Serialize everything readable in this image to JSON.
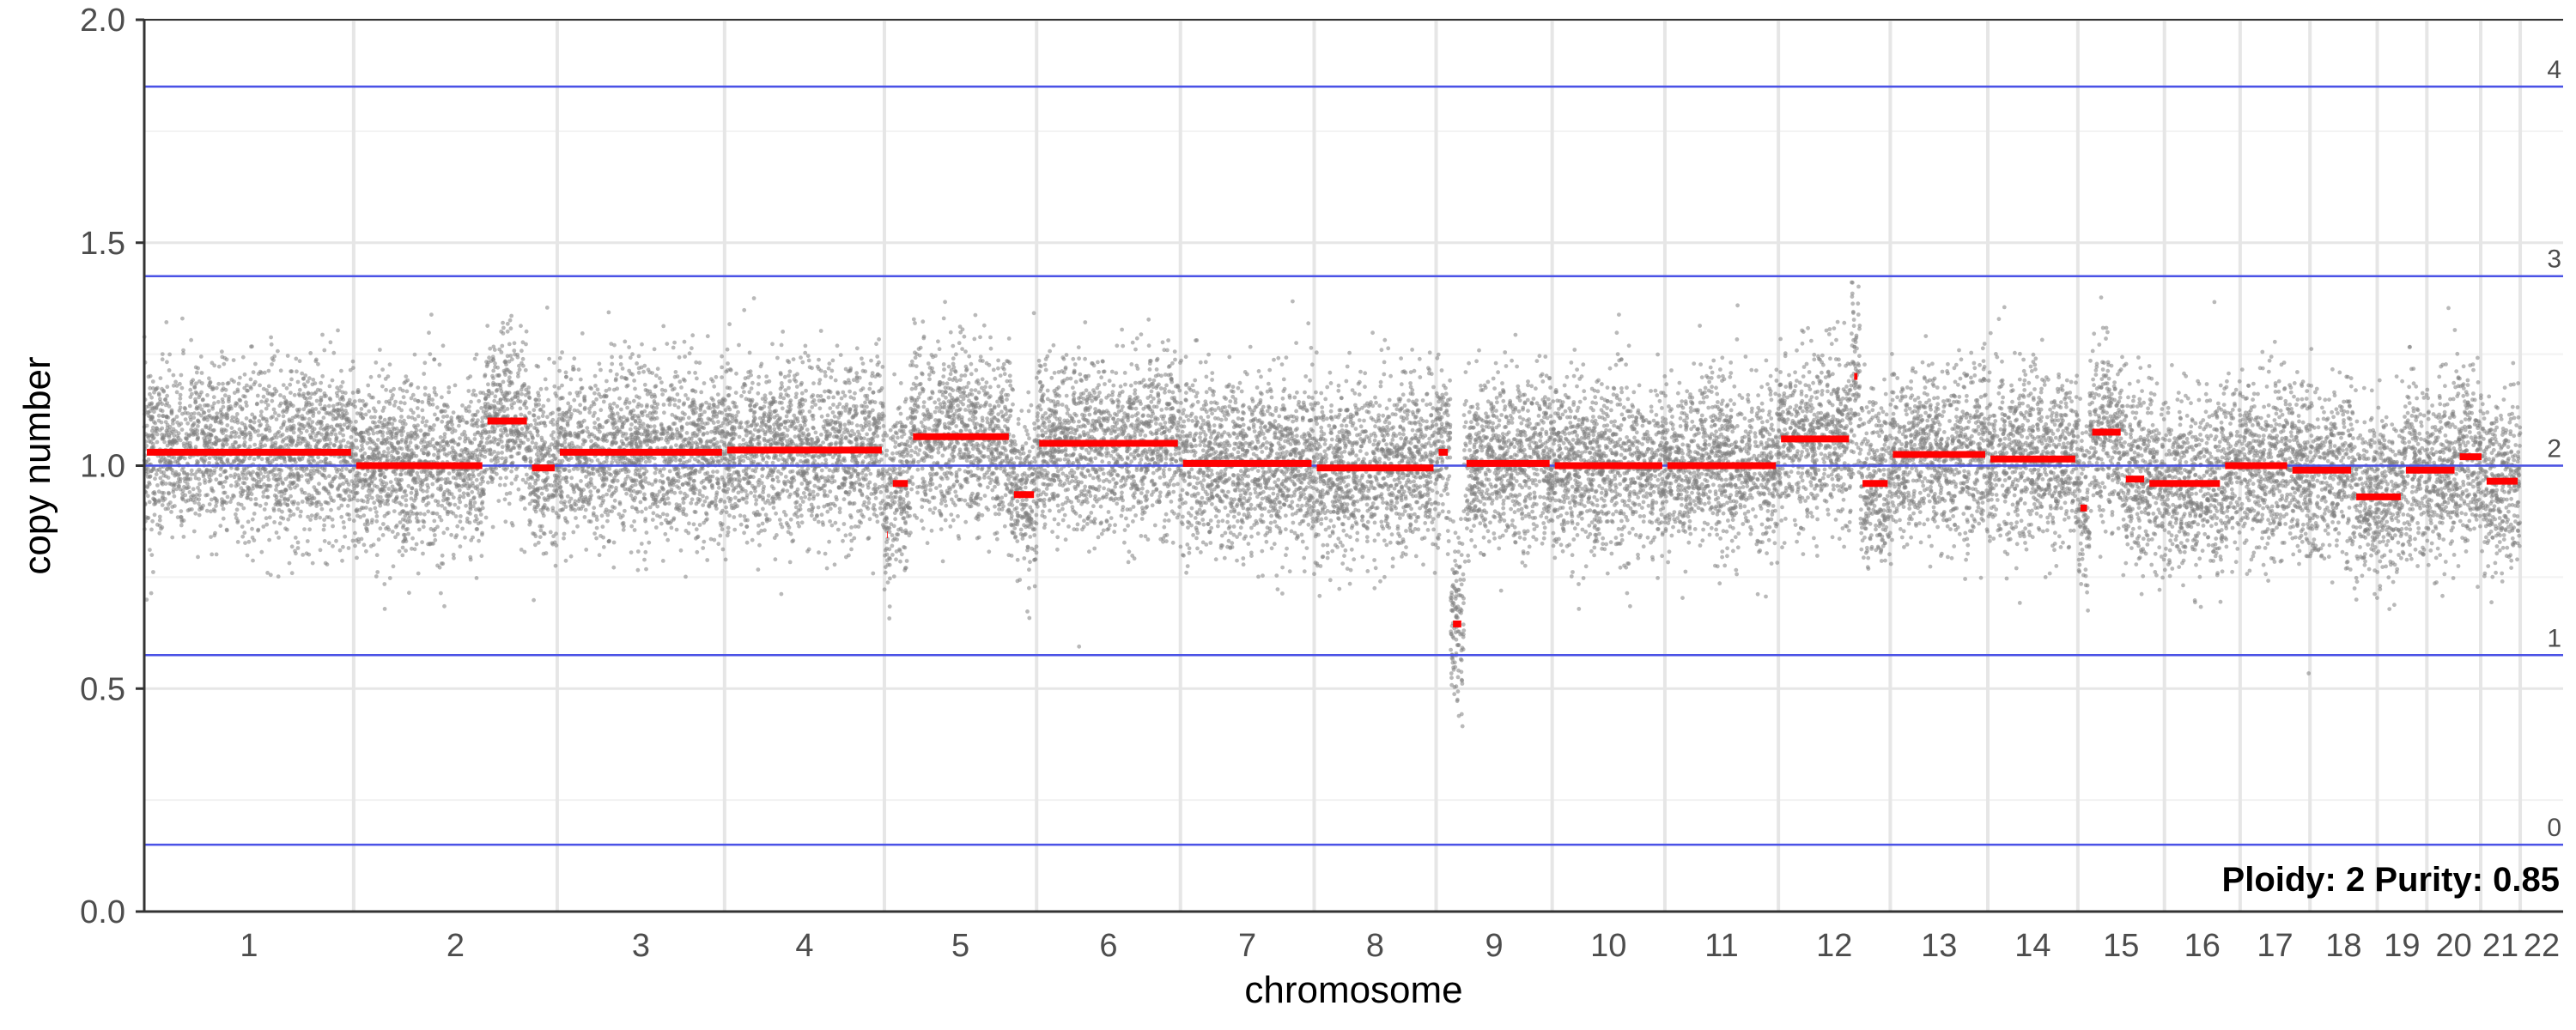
{
  "chart_data": {
    "type": "scatter",
    "title": "",
    "xlabel": "chromosome",
    "ylabel": "copy number",
    "ylim": [
      0,
      2
    ],
    "y_ticks": [
      "0.0",
      "0.5",
      "1.0",
      "1.5",
      "2.0"
    ],
    "grid": true,
    "chromosomes": [
      {
        "label": "1",
        "start": 0,
        "end": 249
      },
      {
        "label": "2",
        "start": 249,
        "end": 491
      },
      {
        "label": "3",
        "start": 491,
        "end": 690
      },
      {
        "label": "4",
        "start": 690,
        "end": 880
      },
      {
        "label": "5",
        "start": 880,
        "end": 1061
      },
      {
        "label": "6",
        "start": 1061,
        "end": 1232
      },
      {
        "label": "7",
        "start": 1232,
        "end": 1391
      },
      {
        "label": "8",
        "start": 1391,
        "end": 1536
      },
      {
        "label": "9",
        "start": 1536,
        "end": 1674
      },
      {
        "label": "10",
        "start": 1674,
        "end": 1808
      },
      {
        "label": "11",
        "start": 1808,
        "end": 1943
      },
      {
        "label": "12",
        "start": 1943,
        "end": 2076
      },
      {
        "label": "13",
        "start": 2076,
        "end": 2192
      },
      {
        "label": "14",
        "start": 2192,
        "end": 2299
      },
      {
        "label": "15",
        "start": 2299,
        "end": 2402
      },
      {
        "label": "16",
        "start": 2402,
        "end": 2492
      },
      {
        "label": "17",
        "start": 2492,
        "end": 2575
      },
      {
        "label": "18",
        "start": 2575,
        "end": 2655
      },
      {
        "label": "19",
        "start": 2655,
        "end": 2714
      },
      {
        "label": "20",
        "start": 2714,
        "end": 2778
      },
      {
        "label": "21",
        "start": 2778,
        "end": 2825
      },
      {
        "label": "22",
        "start": 2825,
        "end": 2876
      }
    ],
    "copy_number_levels": [
      {
        "label": "0",
        "value": 0.15
      },
      {
        "label": "1",
        "value": 0.575
      },
      {
        "label": "2",
        "value": 1.0
      },
      {
        "label": "3",
        "value": 1.425
      },
      {
        "label": "4",
        "value": 1.85
      }
    ],
    "segments": [
      {
        "start": 0,
        "end": 249,
        "value": 1.03
      },
      {
        "start": 249,
        "end": 405,
        "value": 1.0
      },
      {
        "start": 405,
        "end": 458,
        "value": 1.1
      },
      {
        "start": 458,
        "end": 491,
        "value": 0.995
      },
      {
        "start": 491,
        "end": 690,
        "value": 1.03
      },
      {
        "start": 690,
        "end": 880,
        "value": 1.035
      },
      {
        "start": 880,
        "end": 887,
        "value": 0.845
      },
      {
        "start": 887,
        "end": 911,
        "value": 0.96
      },
      {
        "start": 911,
        "end": 1031,
        "value": 1.065
      },
      {
        "start": 1031,
        "end": 1061,
        "value": 0.935
      },
      {
        "start": 1061,
        "end": 1232,
        "value": 1.05
      },
      {
        "start": 1232,
        "end": 1391,
        "value": 1.005
      },
      {
        "start": 1391,
        "end": 1536,
        "value": 0.995
      },
      {
        "start": 1536,
        "end": 1553,
        "value": 1.03
      },
      {
        "start": 1553,
        "end": 1569,
        "value": 0.645
      },
      {
        "start": 1569,
        "end": 1674,
        "value": 1.005
      },
      {
        "start": 1674,
        "end": 1808,
        "value": 1.0
      },
      {
        "start": 1808,
        "end": 1943,
        "value": 1.0
      },
      {
        "start": 1943,
        "end": 2030,
        "value": 1.06
      },
      {
        "start": 2030,
        "end": 2040,
        "value": 1.2
      },
      {
        "start": 2040,
        "end": 2076,
        "value": 0.96
      },
      {
        "start": 2076,
        "end": 2192,
        "value": 1.025
      },
      {
        "start": 2192,
        "end": 2299,
        "value": 1.015
      },
      {
        "start": 2299,
        "end": 2313,
        "value": 0.905
      },
      {
        "start": 2313,
        "end": 2353,
        "value": 1.075
      },
      {
        "start": 2353,
        "end": 2381,
        "value": 0.97
      },
      {
        "start": 2381,
        "end": 2471,
        "value": 0.96
      },
      {
        "start": 2471,
        "end": 2551,
        "value": 1.0
      },
      {
        "start": 2551,
        "end": 2627,
        "value": 0.99
      },
      {
        "start": 2627,
        "end": 2686,
        "value": 0.93
      },
      {
        "start": 2686,
        "end": 2750,
        "value": 0.99
      },
      {
        "start": 2750,
        "end": 2782,
        "value": 1.02
      },
      {
        "start": 2782,
        "end": 2825,
        "value": 0.965
      }
    ],
    "annotation": "Ploidy: 2 Purity: 0.85",
    "colors": {
      "points": "#7f7f7f",
      "segments": "#ff0000",
      "levels": "#4a52e6",
      "grid": "#e6e6e6",
      "axis": "#333333"
    }
  }
}
